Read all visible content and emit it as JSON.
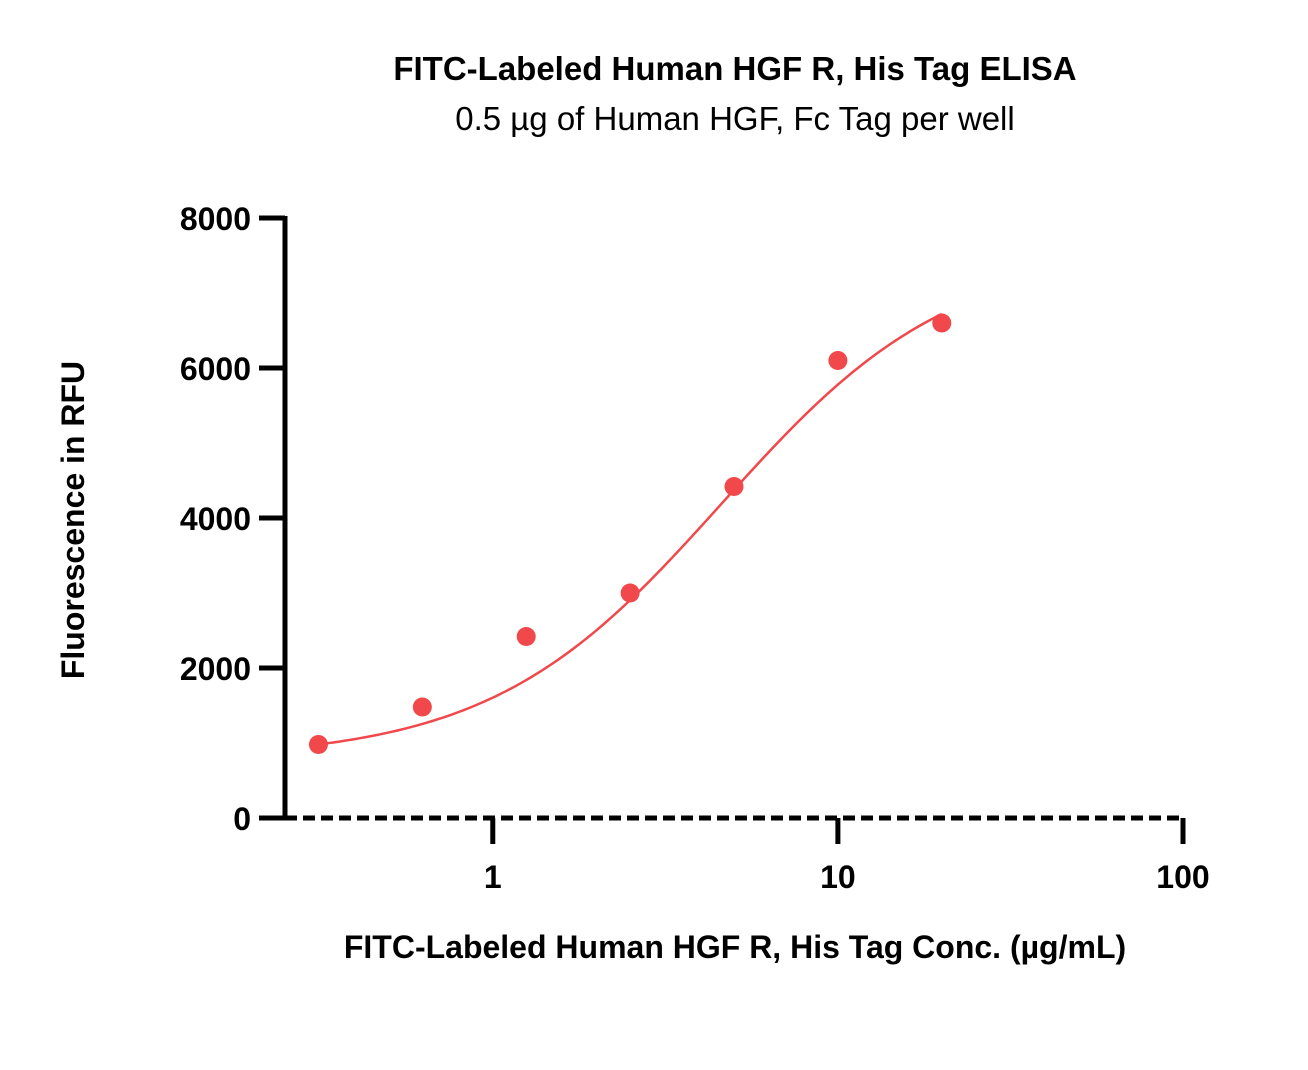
{
  "chart_data": {
    "type": "scatter",
    "title": "FITC-Labeled Human HGF R, His Tag ELISA",
    "subtitle": "0.5 µg of Human HGF, Fc Tag per well",
    "xlabel": "FITC-Labeled Human HGF R, His Tag Conc. (µg/mL)",
    "ylabel": "Fluorescence in RFU",
    "x_scale": "log",
    "xlim": [
      0.25,
      100
    ],
    "ylim": [
      0,
      8000
    ],
    "x_ticks": [
      1,
      10,
      100
    ],
    "x_tick_labels": [
      "1",
      "10",
      "100"
    ],
    "y_ticks": [
      0,
      2000,
      4000,
      6000,
      8000
    ],
    "y_tick_labels": [
      "0",
      "2000",
      "4000",
      "6000",
      "8000"
    ],
    "grid": false,
    "color": "#f0484b",
    "series": [
      {
        "x": [
          0.3125,
          0.625,
          1.25,
          2.5,
          5,
          10,
          20
        ],
        "y": [
          980,
          1480,
          2420,
          3000,
          4420,
          6100,
          6600
        ],
        "fit": "4PL",
        "fit_params": {
          "bottom": 780,
          "top": 7600,
          "ec50": 4.6,
          "hill": 1.3
        }
      }
    ]
  }
}
